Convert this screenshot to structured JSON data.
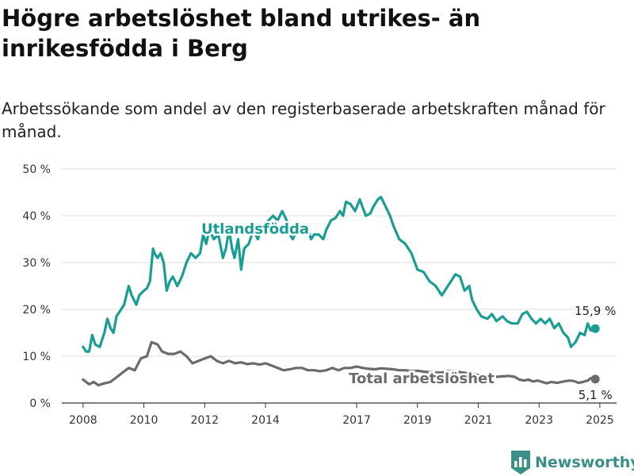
{
  "title": "Högre arbetslöshet bland utrikes- än inrikesfödda i Berg",
  "subtitle": "Arbetssökande som andel av den registerbaserade arbetskraften månad för månad.",
  "brand": {
    "name": "Newsworthy",
    "color": "#3a8f86",
    "icon": "bar-chart-logo-icon"
  },
  "chart_data": {
    "type": "line",
    "ylim": [
      0,
      50
    ],
    "y_ticks": [
      0,
      10,
      20,
      30,
      40,
      50
    ],
    "y_tick_labels": [
      "0 %",
      "10 %",
      "20 %",
      "30 %",
      "40 %",
      "50 %"
    ],
    "x_ticks": [
      2008,
      2010,
      2012,
      2014,
      2017,
      2019,
      2021,
      2023,
      2025
    ],
    "x_tick_labels": [
      "2008",
      "2010",
      "2012",
      "2014",
      "2017",
      "2019",
      "2021",
      "2023",
      "2025"
    ],
    "grid": "horizontal",
    "series": [
      {
        "name": "Utlandsfödda",
        "color": "#1a9e94",
        "end_label": "15,9 %",
        "points": [
          [
            2008.0,
            12
          ],
          [
            2008.1,
            11
          ],
          [
            2008.2,
            11
          ],
          [
            2008.3,
            14.5
          ],
          [
            2008.4,
            12.5
          ],
          [
            2008.55,
            12
          ],
          [
            2008.7,
            15
          ],
          [
            2008.8,
            18
          ],
          [
            2008.9,
            16
          ],
          [
            2009.0,
            15
          ],
          [
            2009.1,
            18.5
          ],
          [
            2009.25,
            20
          ],
          [
            2009.35,
            21
          ],
          [
            2009.5,
            25
          ],
          [
            2009.6,
            23
          ],
          [
            2009.75,
            21
          ],
          [
            2009.85,
            23
          ],
          [
            2010.0,
            24
          ],
          [
            2010.1,
            24.5
          ],
          [
            2010.2,
            26
          ],
          [
            2010.3,
            33
          ],
          [
            2010.35,
            32
          ],
          [
            2010.45,
            31
          ],
          [
            2010.55,
            32
          ],
          [
            2010.65,
            30
          ],
          [
            2010.75,
            24
          ],
          [
            2010.85,
            26
          ],
          [
            2010.95,
            27
          ],
          [
            2011.1,
            25
          ],
          [
            2011.25,
            27
          ],
          [
            2011.4,
            30
          ],
          [
            2011.55,
            32
          ],
          [
            2011.7,
            31
          ],
          [
            2011.85,
            32
          ],
          [
            2011.95,
            36
          ],
          [
            2012.05,
            34
          ],
          [
            2012.15,
            37
          ],
          [
            2012.3,
            35
          ],
          [
            2012.45,
            36
          ],
          [
            2012.6,
            31
          ],
          [
            2012.7,
            33
          ],
          [
            2012.8,
            37
          ],
          [
            2012.9,
            33
          ],
          [
            2012.98,
            31
          ],
          [
            2013.1,
            35
          ],
          [
            2013.2,
            28.5
          ],
          [
            2013.3,
            33
          ],
          [
            2013.45,
            34
          ],
          [
            2013.6,
            37
          ],
          [
            2013.75,
            35
          ],
          [
            2013.85,
            37
          ],
          [
            2013.95,
            38
          ],
          [
            2014.1,
            39
          ],
          [
            2014.25,
            40
          ],
          [
            2014.4,
            39
          ],
          [
            2014.55,
            41
          ],
          [
            2014.7,
            39
          ],
          [
            2014.8,
            36
          ],
          [
            2014.9,
            35
          ],
          [
            2015.0,
            36.5
          ],
          [
            2015.1,
            37.5
          ],
          [
            2015.2,
            36
          ],
          [
            2015.35,
            38
          ],
          [
            2015.5,
            35
          ],
          [
            2015.6,
            36
          ],
          [
            2015.75,
            36
          ],
          [
            2015.9,
            35
          ],
          [
            2016.0,
            37
          ],
          [
            2016.15,
            39
          ],
          [
            2016.3,
            39.5
          ],
          [
            2016.45,
            41
          ],
          [
            2016.55,
            40
          ],
          [
            2016.65,
            43
          ],
          [
            2016.8,
            42.5
          ],
          [
            2016.95,
            41
          ],
          [
            2017.1,
            43.5
          ],
          [
            2017.3,
            40
          ],
          [
            2017.45,
            40.5
          ],
          [
            2017.55,
            42
          ],
          [
            2017.7,
            43.5
          ],
          [
            2017.8,
            44
          ],
          [
            2017.95,
            42
          ],
          [
            2018.1,
            40
          ],
          [
            2018.2,
            38
          ],
          [
            2018.4,
            35
          ],
          [
            2018.6,
            34
          ],
          [
            2018.8,
            32
          ],
          [
            2019.0,
            28.5
          ],
          [
            2019.2,
            28
          ],
          [
            2019.4,
            26
          ],
          [
            2019.6,
            25
          ],
          [
            2019.8,
            23
          ],
          [
            2019.95,
            24.5
          ],
          [
            2020.1,
            26
          ],
          [
            2020.25,
            27.5
          ],
          [
            2020.4,
            27
          ],
          [
            2020.55,
            24
          ],
          [
            2020.7,
            25
          ],
          [
            2020.8,
            22
          ],
          [
            2020.95,
            20
          ],
          [
            2021.1,
            18.5
          ],
          [
            2021.3,
            18
          ],
          [
            2021.45,
            19
          ],
          [
            2021.6,
            17.5
          ],
          [
            2021.8,
            18.5
          ],
          [
            2021.95,
            17.5
          ],
          [
            2022.1,
            17
          ],
          [
            2022.3,
            17
          ],
          [
            2022.45,
            19
          ],
          [
            2022.6,
            19.5
          ],
          [
            2022.75,
            18
          ],
          [
            2022.9,
            17
          ],
          [
            2023.05,
            18
          ],
          [
            2023.2,
            17
          ],
          [
            2023.35,
            18
          ],
          [
            2023.5,
            16
          ],
          [
            2023.65,
            17
          ],
          [
            2023.8,
            15
          ],
          [
            2023.95,
            14
          ],
          [
            2024.05,
            12
          ],
          [
            2024.2,
            13
          ],
          [
            2024.35,
            15
          ],
          [
            2024.5,
            14.5
          ],
          [
            2024.6,
            17
          ],
          [
            2024.7,
            15.5
          ],
          [
            2024.85,
            15.9
          ]
        ]
      },
      {
        "name": "Total arbetslöshet",
        "color": "#6b6b6b",
        "end_label": "5,1 %",
        "points": [
          [
            2008.0,
            5
          ],
          [
            2008.2,
            4
          ],
          [
            2008.35,
            4.5
          ],
          [
            2008.5,
            3.8
          ],
          [
            2008.7,
            4.2
          ],
          [
            2008.9,
            4.5
          ],
          [
            2009.1,
            5.5
          ],
          [
            2009.3,
            6.5
          ],
          [
            2009.5,
            7.5
          ],
          [
            2009.7,
            7
          ],
          [
            2009.9,
            9.5
          ],
          [
            2010.1,
            10
          ],
          [
            2010.25,
            13
          ],
          [
            2010.45,
            12.5
          ],
          [
            2010.6,
            11
          ],
          [
            2010.8,
            10.5
          ],
          [
            2011.0,
            10.5
          ],
          [
            2011.2,
            11
          ],
          [
            2011.4,
            10
          ],
          [
            2011.6,
            8.5
          ],
          [
            2011.8,
            9
          ],
          [
            2012.0,
            9.5
          ],
          [
            2012.2,
            10
          ],
          [
            2012.4,
            9
          ],
          [
            2012.6,
            8.5
          ],
          [
            2012.8,
            9
          ],
          [
            2013.0,
            8.5
          ],
          [
            2013.2,
            8.7
          ],
          [
            2013.4,
            8.3
          ],
          [
            2013.6,
            8.5
          ],
          [
            2013.8,
            8.2
          ],
          [
            2014.0,
            8.5
          ],
          [
            2014.2,
            8
          ],
          [
            2014.4,
            7.5
          ],
          [
            2014.6,
            7
          ],
          [
            2014.8,
            7.2
          ],
          [
            2015.0,
            7.5
          ],
          [
            2015.2,
            7.5
          ],
          [
            2015.4,
            7
          ],
          [
            2015.6,
            7
          ],
          [
            2015.8,
            6.8
          ],
          [
            2016.0,
            7
          ],
          [
            2016.2,
            7.5
          ],
          [
            2016.4,
            7
          ],
          [
            2016.6,
            7.5
          ],
          [
            2016.8,
            7.5
          ],
          [
            2017.0,
            7.8
          ],
          [
            2017.2,
            7.5
          ],
          [
            2017.4,
            7.3
          ],
          [
            2017.6,
            7.2
          ],
          [
            2017.8,
            7.4
          ],
          [
            2018.0,
            7.3
          ],
          [
            2018.2,
            7.2
          ],
          [
            2018.4,
            7
          ],
          [
            2018.6,
            7
          ],
          [
            2018.8,
            6.8
          ],
          [
            2019.0,
            6.9
          ],
          [
            2019.2,
            6.7
          ],
          [
            2019.4,
            6.6
          ],
          [
            2019.6,
            6.5
          ],
          [
            2019.8,
            6.5
          ],
          [
            2020.0,
            6.8
          ],
          [
            2020.2,
            6.8
          ],
          [
            2020.4,
            6.6
          ],
          [
            2020.6,
            6.4
          ],
          [
            2020.8,
            6.2
          ],
          [
            2021.0,
            6.0
          ],
          [
            2021.2,
            5.8
          ],
          [
            2021.4,
            5.6
          ],
          [
            2021.6,
            5.6
          ],
          [
            2021.8,
            5.7
          ],
          [
            2022.0,
            5.8
          ],
          [
            2022.2,
            5.6
          ],
          [
            2022.35,
            5.0
          ],
          [
            2022.5,
            4.8
          ],
          [
            2022.65,
            5.0
          ],
          [
            2022.8,
            4.6
          ],
          [
            2022.95,
            4.8
          ],
          [
            2023.1,
            4.5
          ],
          [
            2023.25,
            4.2
          ],
          [
            2023.4,
            4.5
          ],
          [
            2023.6,
            4.3
          ],
          [
            2023.8,
            4.6
          ],
          [
            2024.0,
            4.8
          ],
          [
            2024.15,
            4.7
          ],
          [
            2024.3,
            4.3
          ],
          [
            2024.45,
            4.5
          ],
          [
            2024.6,
            4.8
          ],
          [
            2024.7,
            5.3
          ],
          [
            2024.85,
            5.1
          ]
        ]
      }
    ]
  }
}
